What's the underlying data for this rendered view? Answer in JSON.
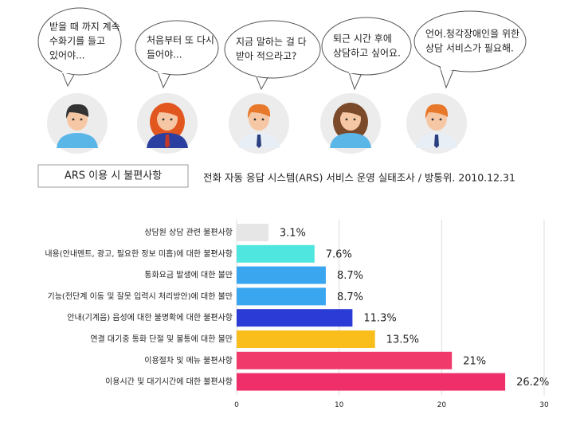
{
  "bubbles": [
    {
      "lines": [
        "받을 때 까지 계속",
        "수화기를 들고",
        "있어야..."
      ]
    },
    {
      "lines": [
        "처음부터 또 다시",
        "들어야..."
      ]
    },
    {
      "lines": [
        "지금 말하는 걸 다",
        "받아 적으라고?"
      ]
    },
    {
      "lines": [
        "퇴근 시간 후에",
        "상담하고 싶어요."
      ]
    },
    {
      "lines": [
        "언어.청각장애인을 위한",
        "상담 서비스가 필요해."
      ]
    }
  ],
  "label_box": "ARS 이용 시 불편사항",
  "source": "전화 자동 응답 시스템(ARS) 서비스 운영 실태조사 / 방통위. 2010.12.31",
  "chart_data": {
    "type": "bar",
    "orientation": "horizontal",
    "categories": [
      "상담원 상담 관련 불편사항",
      "내용(안내멘트, 광고, 필요한 정보 미흡)에 대한 불편사항",
      "통화요금 발생에 대한 불만",
      "기능(전단계 이동 및 잘못 입력시 처리방안)에 대한 불만",
      "안내(기계음) 음성에 대한 불명확에 대한 불편사항",
      "연결 대기중 통화 단절 및 불통에 대한 불만",
      "이용절차 및 메뉴 불편사항",
      "이용시간 및 대기시간에 대한 불편사항"
    ],
    "values": [
      3.1,
      7.6,
      8.7,
      8.7,
      11.3,
      13.5,
      21,
      26.2
    ],
    "value_labels": [
      "3.1%",
      "7.6%",
      "8.7%",
      "8.7%",
      "11.3%",
      "13.5%",
      "21%",
      "26.2%"
    ],
    "colors": [
      "#e6e6e6",
      "#4ee6df",
      "#3aa6ef",
      "#3aa6ef",
      "#2b3bd6",
      "#f9bd1c",
      "#f03a6b",
      "#ef2f69"
    ],
    "xlim": [
      0,
      30
    ],
    "xticks": [
      0,
      10,
      20,
      30
    ],
    "grid": true
  }
}
